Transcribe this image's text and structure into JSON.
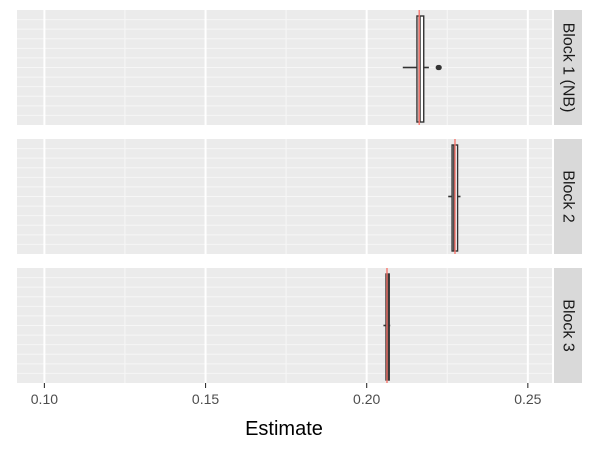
{
  "chart_data": {
    "type": "boxplot",
    "xlabel": "Estimate",
    "xlim": [
      0.0915,
      0.2575
    ],
    "x_ticks": [
      "0.10",
      "0.15",
      "0.20",
      "0.25"
    ],
    "x_tick_values": [
      0.1,
      0.15,
      0.2,
      0.25
    ],
    "grid": true,
    "reference_line_color": "#F8766D",
    "panel_background": "#EBEBEB",
    "strip_background": "#D9D9D9",
    "facets": [
      {
        "label": "Block 1 (NB)",
        "reference": 0.2163,
        "box": {
          "whisker_low": 0.2112,
          "q1": 0.2156,
          "median": 0.2164,
          "q3": 0.2177,
          "whisker_high": 0.2193
        },
        "outliers": [
          0.2222,
          0.2225
        ]
      },
      {
        "label": "Block 2",
        "reference": 0.2274,
        "box": {
          "whisker_low": 0.2253,
          "q1": 0.2265,
          "median": 0.2272,
          "q3": 0.2282,
          "whisker_high": 0.2291
        },
        "outliers": []
      },
      {
        "label": "Block 3",
        "reference": 0.2063,
        "box": {
          "whisker_low": 0.2052,
          "q1": 0.206,
          "median": 0.2065,
          "q3": 0.207,
          "whisker_high": 0.2073
        },
        "outliers": []
      }
    ]
  }
}
